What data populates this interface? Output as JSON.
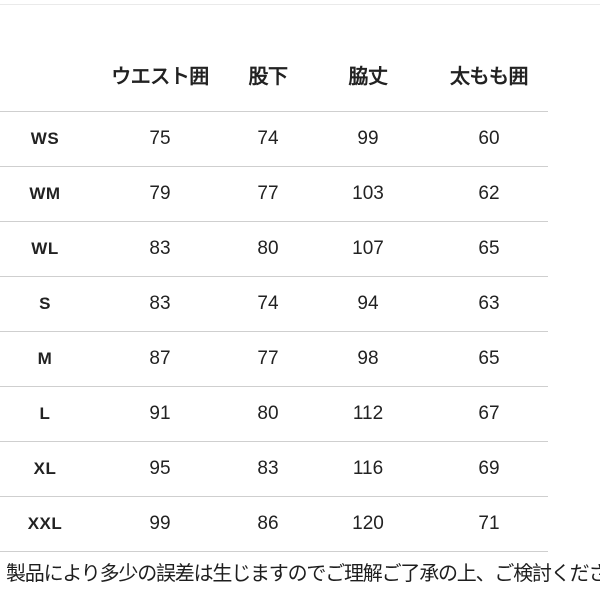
{
  "colors": {
    "background": "#ffffff",
    "text": "#222222",
    "divider": "#cfcfcf",
    "top_rule": "#eaeaea"
  },
  "footer": {
    "note": "製品により多少の誤差は生じますのでご理解ご了承の上、ご検討ください。"
  },
  "chart_data": {
    "type": "table",
    "title": "",
    "columns": [
      "",
      "ウエスト囲",
      "股下",
      "脇丈",
      "太もも囲"
    ],
    "rows": [
      [
        "WS",
        75,
        74,
        99,
        60
      ],
      [
        "WM",
        79,
        77,
        103,
        62
      ],
      [
        "WL",
        83,
        80,
        107,
        65
      ],
      [
        "S",
        83,
        74,
        94,
        63
      ],
      [
        "M",
        87,
        77,
        98,
        65
      ],
      [
        "L",
        91,
        80,
        112,
        67
      ],
      [
        "XL",
        95,
        83,
        116,
        69
      ],
      [
        "XXL",
        99,
        86,
        120,
        71
      ]
    ],
    "layout": {
      "grid": "horizontal-dividers-only",
      "unit": "cm"
    }
  }
}
